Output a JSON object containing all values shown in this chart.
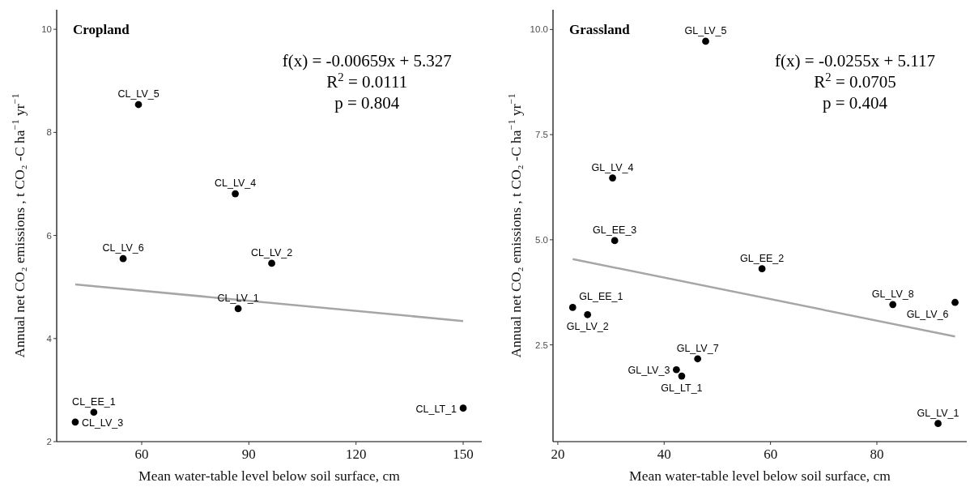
{
  "chart_data": [
    {
      "type": "scatter",
      "title": "Cropland",
      "xlabel": "Mean water-table level below soil surface, cm",
      "ylabel": "Annual net CO₂ emissions , t CO₂ -C ha$^{−1}$ yr$^{−1}$",
      "xlim": [
        36.2,
        155.2
      ],
      "ylim": [
        2,
        10.38
      ],
      "xticks": [
        60,
        90,
        120,
        150
      ],
      "yticks": [
        2,
        4,
        6,
        8,
        10
      ],
      "series": [
        {
          "color": "#000000",
          "marker": "circle",
          "x": [
            59.1,
            86.2,
            54.8,
            96.4,
            87.0,
            46.6,
            41.4,
            150
          ],
          "values": [
            8.54,
            6.81,
            5.55,
            5.46,
            4.58,
            2.57,
            2.38,
            2.65
          ]
        },
        {
          "type": "line",
          "color": "#a6a6a6",
          "x": [
            41.4,
            150
          ],
          "values": [
            5.05,
            4.34
          ]
        }
      ],
      "annotations": [
        "f(x) = -0.00659x + 5.327",
        "R$^{2}$ = 0.0111",
        "p = 0.804",
        {
          "text": "CL_LV_5",
          "x": 59.1,
          "y": 8.54
        },
        {
          "text": "CL_LV_4",
          "x": 86.2,
          "y": 6.81
        },
        {
          "text": "CL_LV_6",
          "x": 54.8,
          "y": 5.55
        },
        {
          "text": "CL_LV_2",
          "x": 96.4,
          "y": 5.46
        },
        {
          "text": "CL_LV_1",
          "x": 87.0,
          "y": 4.58
        },
        {
          "text": "CL_EE_1",
          "x": 46.6,
          "y": 2.57
        },
        {
          "text": "CL_LV_3",
          "x": 41.4,
          "y": 2.38
        },
        {
          "text": "CL_LT_1",
          "x": 150,
          "y": 2.65
        }
      ]
    },
    {
      "type": "scatter",
      "title": "Grassland",
      "xlabel": "Mean water-table level below soil surface, cm",
      "ylabel": "Annual net CO₂ emissions , t CO₂ -C ha$^{−1}$ yr$^{−1}$",
      "xlim": [
        19.1,
        96.9
      ],
      "ylim": [
        0.2,
        10.47
      ],
      "xticks": [
        20,
        40,
        60,
        80
      ],
      "yticks": [
        {
          "value": 2.5,
          "label": "2.5"
        },
        {
          "value": 5,
          "label": "5.0"
        },
        {
          "value": 7.5,
          "label": "7.5"
        },
        {
          "value": 10,
          "label": "10.0"
        }
      ],
      "series": [
        {
          "color": "#000000",
          "marker": "circle",
          "x": [
            47.8,
            30.3,
            30.7,
            58.4,
            22.8,
            25.6,
            42.3,
            43.3,
            46.3,
            83.0,
            94.7,
            91.5
          ],
          "values": [
            9.72,
            6.47,
            4.98,
            4.31,
            3.39,
            3.22,
            1.91,
            1.76,
            2.17,
            3.46,
            3.51,
            0.63
          ]
        },
        {
          "type": "line",
          "color": "#a6a6a6",
          "x": [
            22.8,
            94.7
          ],
          "values": [
            4.54,
            2.7
          ]
        }
      ],
      "annotations": [
        "f(x) = -0.0255x + 5.117",
        "R$^{2}$ = 0.0705",
        "p = 0.404",
        {
          "text": "GL_LV_5",
          "x": 47.8,
          "y": 9.72
        },
        {
          "text": "GL_LV_4",
          "x": 30.3,
          "y": 6.47
        },
        {
          "text": "GL_EE_3",
          "x": 30.7,
          "y": 4.98
        },
        {
          "text": "GL_EE_2",
          "x": 58.4,
          "y": 4.31
        },
        {
          "text": "GL_EE_1",
          "x": 22.8,
          "y": 3.39
        },
        {
          "text": "GL_LV_2",
          "x": 25.6,
          "y": 3.22
        },
        {
          "text": "GL_LV_3",
          "x": 42.3,
          "y": 1.91
        },
        {
          "text": "GL_LT_1",
          "x": 43.3,
          "y": 1.76
        },
        {
          "text": "GL_LV_7",
          "x": 46.3,
          "y": 2.17
        },
        {
          "text": "GL_LV_8",
          "x": 83.0,
          "y": 3.46
        },
        {
          "text": "GL_LV_6",
          "x": 94.7,
          "y": 3.51
        },
        {
          "text": "GL_LV_1",
          "x": 91.5,
          "y": 0.63
        }
      ]
    }
  ]
}
